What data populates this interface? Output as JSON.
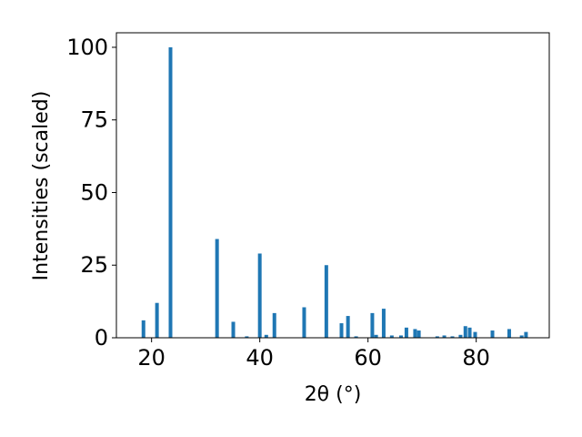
{
  "chart_data": {
    "type": "bar",
    "x_label": "2θ (°)",
    "y_label": "Intensities (scaled)",
    "color": "#1f77b4",
    "x": [
      18.5,
      21.0,
      23.5,
      32.1,
      35.1,
      37.6,
      40.0,
      41.2,
      42.7,
      48.2,
      52.3,
      55.1,
      56.3,
      57.8,
      60.8,
      61.5,
      62.9,
      64.4,
      66.1,
      67.1,
      68.7,
      69.4,
      72.8,
      74.1,
      75.6,
      77.1,
      78.0,
      78.8,
      79.8,
      83.0,
      86.1,
      88.4,
      89.2
    ],
    "values": [
      6,
      12,
      100,
      34,
      5.5,
      0.5,
      29,
      1,
      8.5,
      10.5,
      25,
      5,
      7.5,
      0.5,
      8.5,
      1,
      10,
      0.8,
      0.8,
      3.5,
      3,
      2.5,
      0.5,
      0.8,
      0.5,
      1,
      4,
      3.5,
      2,
      2.5,
      3,
      0.8,
      2
    ],
    "xlim": [
      13.5,
      93.5
    ],
    "ylim": [
      0,
      105
    ],
    "xticks": [
      20,
      40,
      60,
      80
    ],
    "yticks": [
      0,
      25,
      50,
      75,
      100
    ]
  }
}
